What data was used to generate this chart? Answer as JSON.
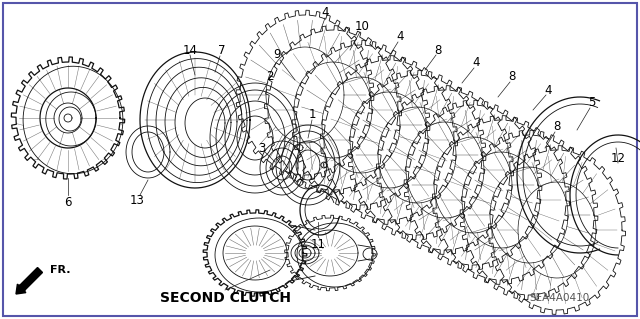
{
  "background_color": "#ffffff",
  "border_color": "#5555aa",
  "diagram_label": "SECOND CLUTCH",
  "diagram_code": "SEA4A0410",
  "text_color": "#000000",
  "label_fontsize": 8.5,
  "diagram_label_fontsize": 10,
  "code_fontsize": 7.5,
  "col": "#111111",
  "lw_thin": 0.6,
  "lw_med": 0.9,
  "lw_thick": 1.2
}
